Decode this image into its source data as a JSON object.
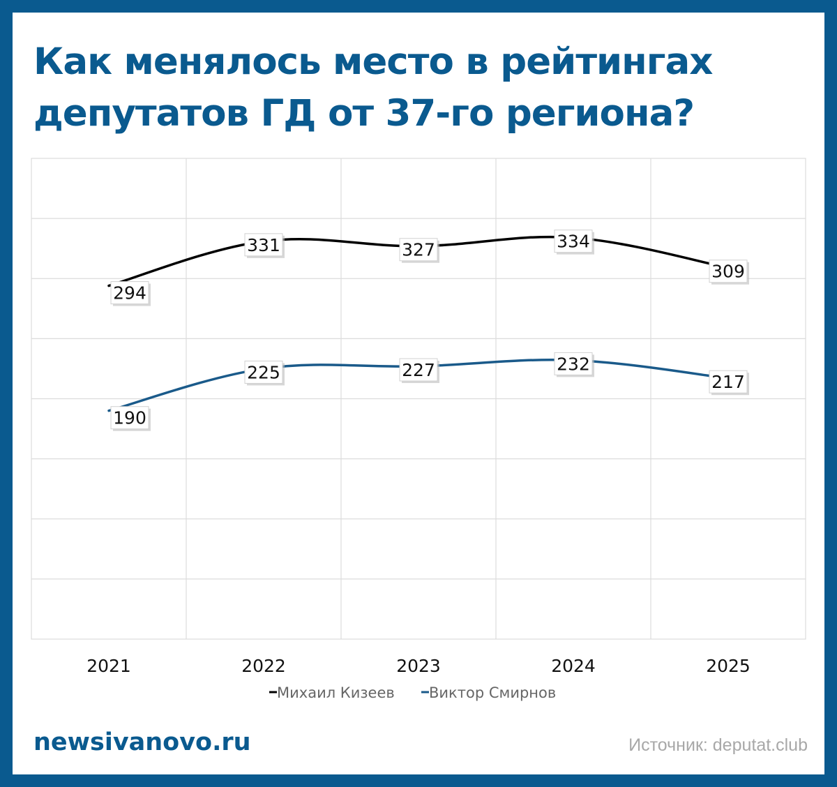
{
  "title_line1": "Как менялось место в рейтингах",
  "title_line2": "депутатов ГД от 37-го региона?",
  "chart_data": {
    "type": "line",
    "categories": [
      "2021",
      "2022",
      "2023",
      "2024",
      "2025"
    ],
    "series": [
      {
        "name": "Михаил Кизеев",
        "values": [
          294,
          331,
          327,
          334,
          309
        ],
        "color": "#000000"
      },
      {
        "name": "Виктор Смирнов",
        "values": [
          190,
          225,
          227,
          232,
          217
        ],
        "color": "#1a5a8a"
      }
    ],
    "ylim": [
      0,
      400
    ],
    "grid": true,
    "legend": "bottom-center",
    "data_labels": true
  },
  "footer": {
    "brand": "newsivanovo.ru",
    "source": "Источник: deputat.club"
  },
  "colors": {
    "accent": "#0a5a8f",
    "grid": "#dcdcdc",
    "source": "#a8a8a8"
  }
}
